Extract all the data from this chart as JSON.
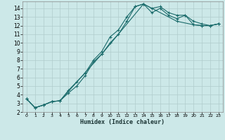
{
  "xlabel": "Humidex (Indice chaleur)",
  "bg_color": "#cce8e8",
  "grid_color": "#b0cccc",
  "line_color": "#1a6b6b",
  "xlim": [
    -0.5,
    23.5
  ],
  "ylim": [
    2.0,
    14.8
  ],
  "xticks": [
    0,
    1,
    2,
    3,
    4,
    5,
    6,
    7,
    8,
    9,
    10,
    11,
    12,
    13,
    14,
    15,
    16,
    17,
    18,
    19,
    20,
    21,
    22,
    23
  ],
  "yticks": [
    2,
    3,
    4,
    5,
    6,
    7,
    8,
    9,
    10,
    11,
    12,
    13,
    14
  ],
  "series": [
    {
      "x": [
        0,
        1,
        2,
        3,
        4,
        5,
        6,
        7,
        8,
        9,
        10,
        11,
        12,
        13,
        14,
        15,
        16,
        17,
        18,
        19,
        20,
        21,
        22,
        23
      ],
      "y": [
        3.5,
        2.5,
        2.8,
        3.2,
        3.3,
        4.5,
        5.5,
        6.5,
        8.0,
        9.0,
        10.7,
        11.5,
        13.0,
        14.2,
        14.5,
        14.0,
        14.2,
        13.5,
        13.2,
        13.2,
        12.1,
        12.0,
        12.0,
        12.2
      ]
    },
    {
      "x": [
        0,
        1,
        2,
        3,
        4,
        5,
        6,
        7,
        8,
        9,
        10,
        11,
        12,
        13,
        14,
        15,
        16,
        17,
        18,
        19,
        20,
        21,
        22,
        23
      ],
      "y": [
        3.5,
        2.5,
        2.8,
        3.2,
        3.3,
        4.2,
        5.0,
        6.2,
        7.8,
        8.7,
        10.0,
        11.0,
        12.5,
        14.2,
        14.5,
        13.5,
        14.0,
        13.2,
        12.8,
        13.2,
        12.5,
        12.2,
        12.0,
        12.2
      ]
    },
    {
      "x": [
        0,
        1,
        2,
        3,
        4,
        9,
        14,
        18,
        20,
        21,
        22,
        23
      ],
      "y": [
        3.5,
        2.5,
        2.8,
        3.2,
        3.3,
        8.7,
        14.5,
        12.5,
        12.1,
        12.0,
        12.0,
        12.2
      ]
    }
  ]
}
